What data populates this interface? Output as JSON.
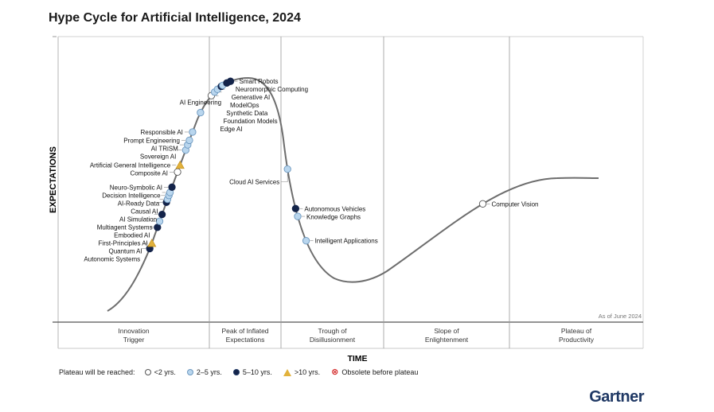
{
  "title": "Hype Cycle for Artificial Intelligence, 2024",
  "brand": "Gartner",
  "chart_data": {
    "type": "scatter",
    "title": "Hype Cycle for Artificial Intelligence, 2024",
    "xlabel": "TIME",
    "ylabel": "EXPECTATIONS",
    "as_of": "As of June 2024",
    "phases": [
      {
        "label1": "Innovation",
        "label2": "Trigger"
      },
      {
        "label1": "Peak of Inflated",
        "label2": "Expectations"
      },
      {
        "label1": "Trough of",
        "label2": "Disillusionment"
      },
      {
        "label1": "Slope of",
        "label2": "Enlightenment"
      },
      {
        "label1": "Plateau of",
        "label2": "Productivity"
      }
    ],
    "legend": {
      "prefix": "Plateau will be reached:",
      "items": [
        {
          "key": "lt2",
          "label": "<2 yrs.",
          "color": "#ffffff"
        },
        {
          "key": "2to5",
          "label": "2–5 yrs.",
          "color": "#b9d6ee"
        },
        {
          "key": "5to10",
          "label": "5–10 yrs.",
          "color": "#14244a"
        },
        {
          "key": "gt10",
          "label": ">10 yrs.",
          "color": "#e2b23c"
        },
        {
          "key": "obsolete",
          "label": "Obsolete before plateau",
          "color": "#d42a2a"
        }
      ]
    },
    "points": [
      {
        "name": "Autonomic Systems",
        "t": 0.095,
        "cat": "5to10",
        "side": "left"
      },
      {
        "name": "Quantum AI",
        "t": 0.102,
        "cat": "gt10",
        "side": "left"
      },
      {
        "name": "First-Principles AI",
        "t": 0.123,
        "cat": "5to10",
        "side": "left"
      },
      {
        "name": "Embodied AI",
        "t": 0.131,
        "cat": "2to5",
        "side": "left"
      },
      {
        "name": "Multiagent Systems",
        "t": 0.14,
        "cat": "5to10",
        "side": "left"
      },
      {
        "name": "AI Simulation",
        "t": 0.156,
        "cat": "5to10",
        "side": "left"
      },
      {
        "name": "Causal AI",
        "t": 0.16,
        "cat": "2to5",
        "side": "left"
      },
      {
        "name": "AI-Ready Data",
        "t": 0.165,
        "cat": "2to5",
        "side": "left"
      },
      {
        "name": "Decision Intelligence",
        "t": 0.169,
        "cat": "2to5",
        "side": "left"
      },
      {
        "name": "Neuro-Symbolic AI",
        "t": 0.176,
        "cat": "5to10",
        "side": "left"
      },
      {
        "name": "Composite AI",
        "t": 0.196,
        "cat": "lt2",
        "side": "left"
      },
      {
        "name": "Artificial General Intelligence",
        "t": 0.205,
        "cat": "gt10",
        "side": "left"
      },
      {
        "name": "Sovereign AI",
        "t": 0.225,
        "cat": "2to5",
        "side": "left"
      },
      {
        "name": "AI TRiSM",
        "t": 0.232,
        "cat": "2to5",
        "side": "left"
      },
      {
        "name": "Prompt Engineering",
        "t": 0.238,
        "cat": "2to5",
        "side": "left"
      },
      {
        "name": "Responsible AI",
        "t": 0.249,
        "cat": "2to5",
        "side": "left"
      },
      {
        "name": "AI Engineering",
        "t": 0.275,
        "cat": "2to5",
        "side": "top"
      },
      {
        "name": "Edge AI",
        "t": 0.3,
        "cat": "lt2",
        "side": "right"
      },
      {
        "name": "Foundation Models",
        "t": 0.306,
        "cat": "2to5",
        "side": "right"
      },
      {
        "name": "Synthetic Data",
        "t": 0.311,
        "cat": "2to5",
        "side": "right"
      },
      {
        "name": "ModelOps",
        "t": 0.317,
        "cat": "5to10",
        "side": "right"
      },
      {
        "name": "Generative AI",
        "t": 0.319,
        "cat": "2to5",
        "side": "right"
      },
      {
        "name": "Neuromorphic Computing",
        "t": 0.325,
        "cat": "5to10",
        "side": "right"
      },
      {
        "name": "Smart Robots",
        "t": 0.33,
        "cat": "5to10",
        "side": "right"
      },
      {
        "name": "Cloud AI Services",
        "t": 0.485,
        "cat": "2to5",
        "side": "below"
      },
      {
        "name": "Autonomous Vehicles",
        "t": 0.535,
        "cat": "5to10",
        "side": "right"
      },
      {
        "name": "Knowledge Graphs",
        "t": 0.545,
        "cat": "2to5",
        "side": "right"
      },
      {
        "name": "Intelligent Applications",
        "t": 0.577,
        "cat": "2to5",
        "side": "right"
      },
      {
        "name": "Computer Vision",
        "t": 0.85,
        "cat": "lt2",
        "side": "right"
      }
    ]
  }
}
